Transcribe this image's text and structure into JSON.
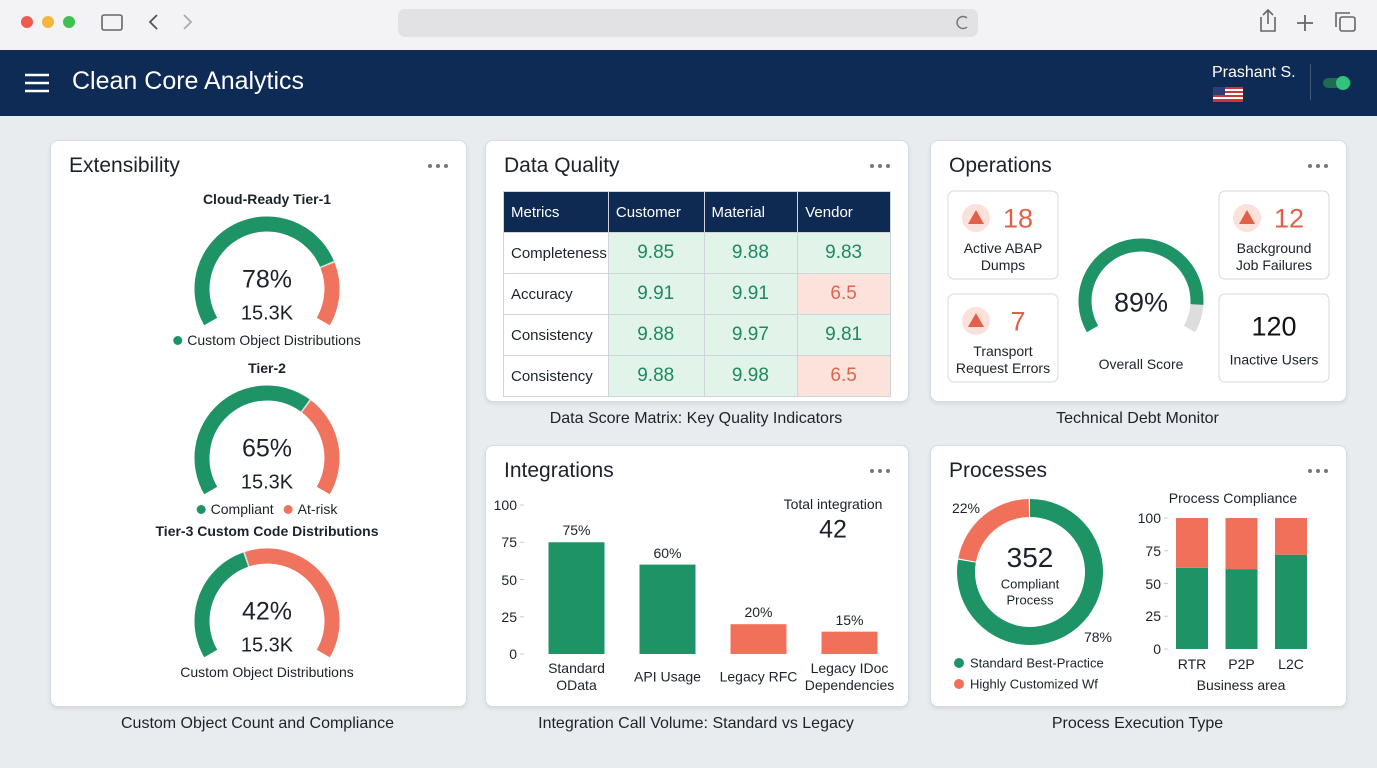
{
  "header": {
    "title": "Clean Core Analytics",
    "user": "Prashant S."
  },
  "extensibility": {
    "title": "Extensibility",
    "caption": "Custom Object Count and Compliance",
    "colors": [
      "#1e9466",
      "#ef735d",
      "#dddddd"
    ],
    "gauges": [
      {
        "title": "Cloud-Ready Tier-1",
        "value": 78,
        "value_label": "78%",
        "count": "15.3K",
        "legend": [
          {
            "label": "Custom Object Distributions",
            "color": "#1e9466"
          }
        ]
      },
      {
        "title": "Tier-2",
        "value": 65,
        "value_label": "65%",
        "count": "15.3K",
        "legend": [
          {
            "label": "Compliant",
            "color": "#1e9466"
          },
          {
            "label": "At-risk",
            "color": "#ef735d"
          }
        ]
      },
      {
        "title": "Tier-3 Custom Code Distributions",
        "value": 42,
        "value_label": "42%",
        "count": "15.3K",
        "legend": [
          {
            "label": "Custom Object Distributions"
          }
        ]
      }
    ]
  },
  "data_quality": {
    "title": "Data Quality",
    "caption": "Data Score Matrix: Key Quality Indicators",
    "palette": {
      "good": {
        "fill": "#e2f3e9",
        "text": "#1e8a5c"
      },
      "bad": {
        "fill": "#fbe2db",
        "text": "#e0644e"
      }
    },
    "columns": [
      "Metrics",
      "Customer",
      "Material",
      "Vendor"
    ],
    "rows": [
      {
        "label": "Completeness",
        "values": [
          9.85,
          9.88,
          9.83
        ],
        "status": [
          "good",
          "good",
          "good"
        ]
      },
      {
        "label": "Accuracy",
        "values": [
          9.91,
          9.91,
          6.5
        ],
        "status": [
          "good",
          "good",
          "bad"
        ]
      },
      {
        "label": "Consistency",
        "values": [
          9.88,
          9.97,
          9.81
        ],
        "status": [
          "good",
          "good",
          "good"
        ]
      },
      {
        "label": "Consistency",
        "values": [
          9.88,
          9.98,
          6.5
        ],
        "status": [
          "good",
          "good",
          "bad"
        ]
      }
    ]
  },
  "operations": {
    "title": "Operations",
    "caption": "Technical Debt Monitor",
    "cards": [
      {
        "value": 18,
        "label": "Active ABAP Dumps",
        "color": "#e0604a",
        "icon": true
      },
      {
        "value": 12,
        "label": "Background Job Failures",
        "color": "#e0604a",
        "icon": true
      },
      {
        "value": 7,
        "label": "Transport Request Errors",
        "color": "#e0604a",
        "icon": true
      },
      {
        "value": 120,
        "label": "Inactive Users",
        "color": "#111111",
        "icon": false
      }
    ],
    "score": {
      "value": 89,
      "value_label": "89%",
      "label": "Overall Score",
      "color": "#1e9466"
    }
  },
  "chart_data": [
    {
      "type": "bar",
      "title": "Integrations",
      "caption": "Integration Call Volume: Standard vs Legacy",
      "categories": [
        "Standard OData",
        "API Usage",
        "Legacy RFC",
        "Legacy IDoc Dependencies"
      ],
      "values": [
        75,
        60,
        20,
        15
      ],
      "value_labels": [
        "75%",
        "60%",
        "20%",
        "15%"
      ],
      "colors": [
        "#1e9466",
        "#1e9466",
        "#f0705a",
        "#f0705a"
      ],
      "ylim": [
        0,
        100
      ],
      "yticks": [
        0,
        25,
        50,
        75,
        100
      ],
      "total_label": "Total integration",
      "total": 42
    },
    {
      "type": "pie",
      "title": "Processes",
      "caption": "Process Execution Type",
      "categories": [
        "Standard Best-Practice",
        "Highly Customized Wf"
      ],
      "values": [
        78,
        22
      ],
      "value_labels": [
        "78%",
        "22%"
      ],
      "colors": [
        "#1e9466",
        "#f0705a"
      ],
      "center_value": 352,
      "center_label": "Compliant Process"
    },
    {
      "type": "stacked_bar",
      "title": "Process Compliance",
      "xlabel": "Business area",
      "categories": [
        "RTR",
        "P2P",
        "L2C"
      ],
      "series": [
        {
          "color": "#1e9466",
          "values": [
            62,
            61,
            72
          ]
        },
        {
          "color": "#f0705a",
          "values": [
            38,
            39,
            28
          ]
        }
      ],
      "ylim": [
        0,
        100
      ],
      "yticks": [
        0,
        25,
        50,
        75,
        100
      ]
    }
  ]
}
